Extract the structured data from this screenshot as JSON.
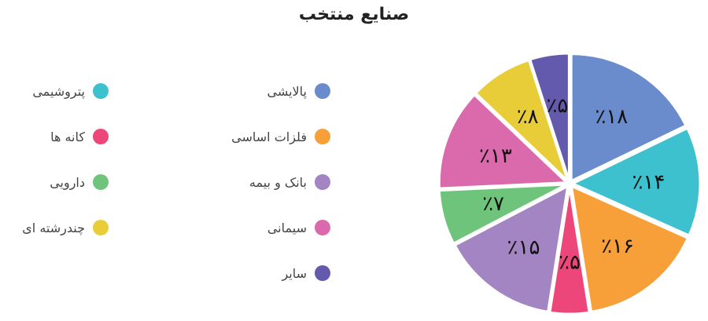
{
  "chart_data": {
    "type": "pie",
    "title": "صنایع منتخب",
    "categories": [
      "پالایشی",
      "پتروشیمی",
      "فلزات اساسی",
      "کانه ها",
      "بانک و بیمه",
      "دارویی",
      "سیمانی",
      "چندرشته ای",
      "سایر"
    ],
    "values": [
      18,
      14,
      16,
      5,
      15,
      7,
      13,
      8,
      5
    ],
    "value_labels": [
      "٪۱۸",
      "٪۱۴",
      "٪۱۶",
      "٪۵",
      "٪۱۵",
      "٪۷",
      "٪۱۳",
      "٪۸",
      "٪۵"
    ],
    "colors": [
      "#6a8ccd",
      "#3ec1cf",
      "#f7a03a",
      "#ec467a",
      "#a285c2",
      "#6fc47c",
      "#db6aac",
      "#e9cd38",
      "#6359ad"
    ],
    "legend_position": "left"
  }
}
